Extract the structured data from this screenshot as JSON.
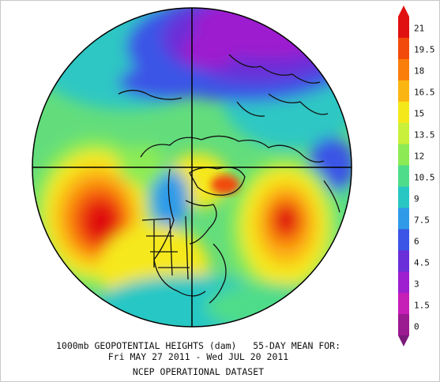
{
  "caption": {
    "line1": "1000mb GEOPOTENTIAL HEIGHTS (dam)   55-DAY MEAN FOR:",
    "line2": "Fri MAY 27 2011 - Wed JUL 20 2011",
    "line3": "NCEP OPERATIONAL DATASET"
  },
  "colorbar": {
    "labels": [
      "21",
      "19.5",
      "18",
      "16.5",
      "15",
      "13.5",
      "12",
      "10.5",
      "9",
      "7.5",
      "6",
      "4.5",
      "3",
      "1.5",
      "0"
    ],
    "colors": [
      "#e01010",
      "#f24a0c",
      "#f97e0a",
      "#fbb512",
      "#f5e81a",
      "#c9f03a",
      "#8ceb55",
      "#4fdc8a",
      "#28c7c4",
      "#2f9be8",
      "#3b55e6",
      "#6a2fd8",
      "#9d1fcf",
      "#c51fb8",
      "#9b1b90"
    ],
    "top_arrow_color": "#e01010",
    "bottom_arrow_color": "#7a1a7a"
  }
}
